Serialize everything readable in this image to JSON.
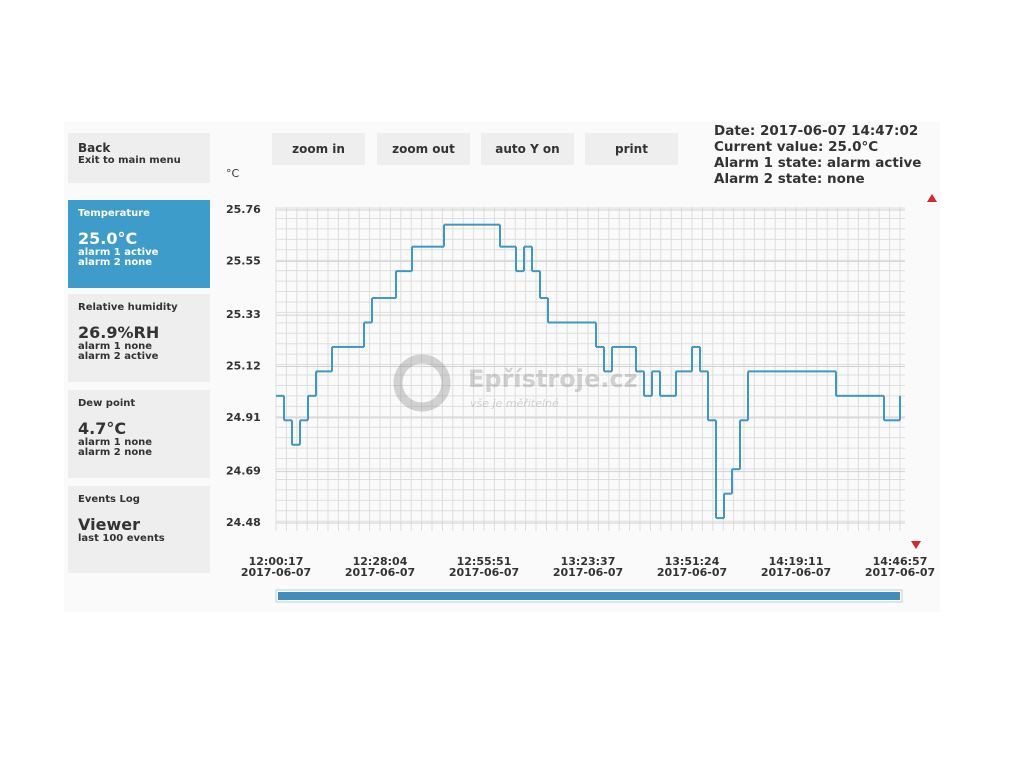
{
  "sidebar": {
    "back": {
      "title": "Back",
      "subtitle": "Exit to main menu"
    },
    "tiles": [
      {
        "label": "Temperature",
        "value": "25.0°C",
        "lines": [
          "alarm 1 active",
          "alarm 2 none"
        ]
      },
      {
        "label": "Relative humidity",
        "value": "26.9%RH",
        "lines": [
          "alarm 1 none",
          "alarm 2 active"
        ]
      },
      {
        "label": "Dew point",
        "value": "4.7°C",
        "lines": [
          "alarm 1 none",
          "alarm 2 none"
        ]
      },
      {
        "label": "Events Log",
        "value": "Viewer",
        "lines": [
          "last 100 events"
        ]
      }
    ]
  },
  "toolbar": {
    "buttons": [
      "zoom in",
      "zoom out",
      "auto Y on",
      "print"
    ]
  },
  "status": [
    "Date: 2017-06-07 14:47:02",
    "Current value: 25.0°C",
    "Alarm 1 state: alarm active",
    "Alarm 2 state: none"
  ],
  "watermark": {
    "brand": "Epřístroje.cz",
    "tagline": "vše je měřitelné"
  },
  "chart_data": {
    "type": "line",
    "unit": "°C",
    "color": "#3f97c4",
    "grid": true,
    "ylim": [
      24.48,
      25.76
    ],
    "yticks": [
      25.76,
      25.55,
      25.33,
      25.12,
      24.91,
      24.69,
      24.48
    ],
    "x_labels": [
      {
        "time": "12:00:17",
        "date": "2017-06-07"
      },
      {
        "time": "12:28:04",
        "date": "2017-06-07"
      },
      {
        "time": "12:55:51",
        "date": "2017-06-07"
      },
      {
        "time": "13:23:37",
        "date": "2017-06-07"
      },
      {
        "time": "13:51:24",
        "date": "2017-06-07"
      },
      {
        "time": "14:19:11",
        "date": "2017-06-07"
      },
      {
        "time": "14:46:57",
        "date": "2017-06-07"
      }
    ],
    "values": [
      25.0,
      24.9,
      24.8,
      24.9,
      25.0,
      25.1,
      25.1,
      25.2,
      25.2,
      25.2,
      25.2,
      25.3,
      25.4,
      25.4,
      25.4,
      25.51,
      25.51,
      25.61,
      25.61,
      25.61,
      25.61,
      25.7,
      25.7,
      25.7,
      25.7,
      25.7,
      25.7,
      25.7,
      25.61,
      25.61,
      25.51,
      25.61,
      25.51,
      25.4,
      25.3,
      25.3,
      25.3,
      25.3,
      25.3,
      25.3,
      25.2,
      25.1,
      25.2,
      25.2,
      25.2,
      25.1,
      25.0,
      25.1,
      25.0,
      25.0,
      25.1,
      25.1,
      25.2,
      25.1,
      24.9,
      24.5,
      24.6,
      24.7,
      24.9,
      25.1,
      25.1,
      25.1,
      25.1,
      25.1,
      25.1,
      25.1,
      25.1,
      25.1,
      25.1,
      25.1,
      25.0,
      25.0,
      25.0,
      25.0,
      25.0,
      25.0,
      24.9,
      24.9,
      25.0
    ]
  }
}
